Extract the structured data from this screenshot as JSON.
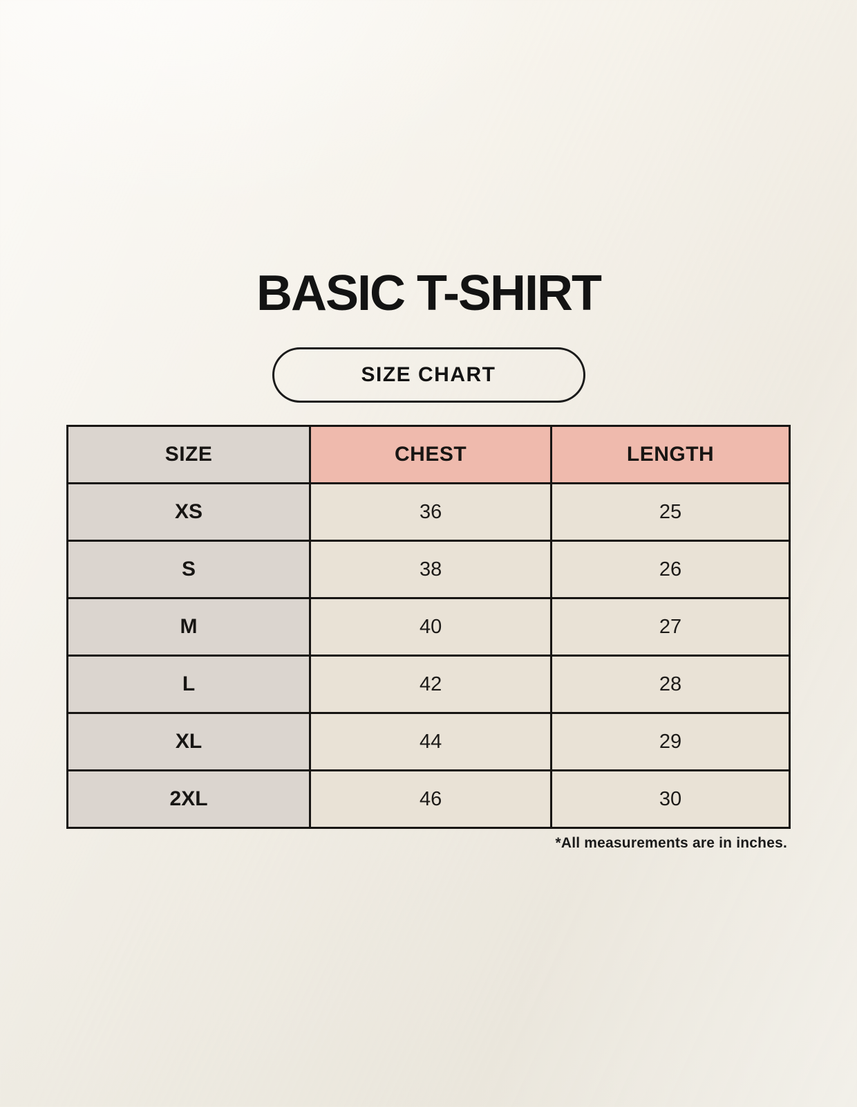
{
  "header": {
    "title": "BASIC T-SHIRT",
    "badge_label": "SIZE CHART"
  },
  "footnote": "*All measurements are in inches.",
  "colors": {
    "page_background": "#f3efe7",
    "table_border": "#171513",
    "size_column_background": "#dbd5cf",
    "accent_header_background": "#efbaad",
    "data_cell_background": "#e9e2d6",
    "text_color": "#131313"
  },
  "chart_data": {
    "type": "table",
    "title": "BASIC T-SHIRT",
    "subtitle": "SIZE CHART",
    "columns": [
      "SIZE",
      "CHEST",
      "LENGTH"
    ],
    "rows": [
      {
        "size": "XS",
        "chest": "36",
        "length": "25"
      },
      {
        "size": "S",
        "chest": "38",
        "length": "26"
      },
      {
        "size": "M",
        "chest": "40",
        "length": "27"
      },
      {
        "size": "L",
        "chest": "42",
        "length": "28"
      },
      {
        "size": "XL",
        "chest": "44",
        "length": "29"
      },
      {
        "size": "2XL",
        "chest": "46",
        "length": "30"
      }
    ],
    "units_note": "*All measurements are in inches."
  }
}
